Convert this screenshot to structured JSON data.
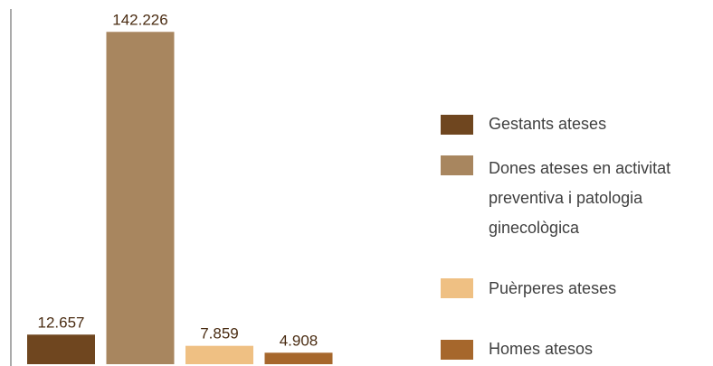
{
  "chart_data": {
    "type": "bar",
    "categories": [
      "Gestants ateses",
      "Dones ateses en activitat preventiva i patologia ginecològica",
      "Puèrperes ateses",
      "Homes atesos"
    ],
    "values": [
      12657,
      142226,
      7859,
      4908
    ],
    "value_labels": [
      "12.657",
      "142.226",
      "7.859",
      "4.908"
    ],
    "colors": [
      "#6f461f",
      "#a8865f",
      "#efc083",
      "#a6672c"
    ],
    "ylim": [
      0,
      152000
    ],
    "legend": "right"
  }
}
